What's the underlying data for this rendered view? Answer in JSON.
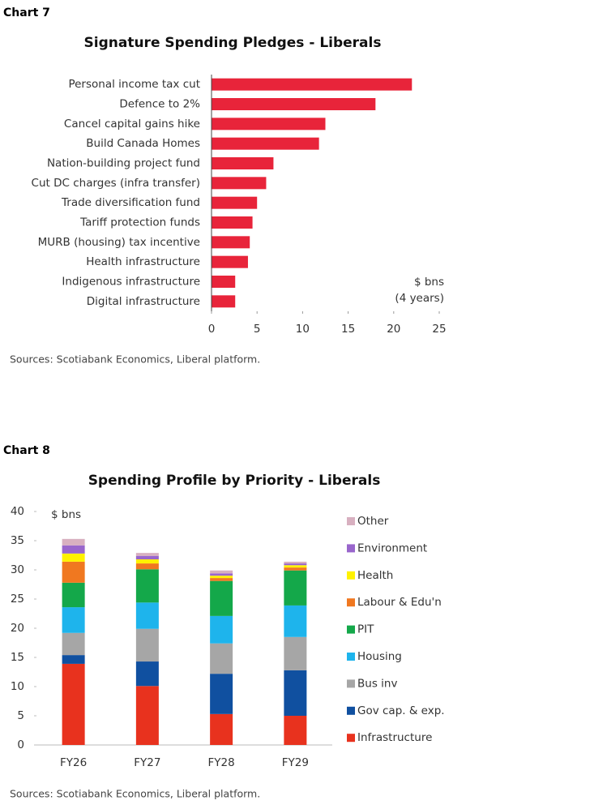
{
  "chart_data": [
    {
      "type": "bar",
      "orientation": "horizontal",
      "label": "Chart 7",
      "title": "Signature Spending Pledges - Liberals",
      "categories": [
        "Personal income tax cut",
        "Defence to 2%",
        "Cancel capital gains hike",
        "Build Canada Homes",
        "Nation-building project fund",
        "Cut DC charges (infra transfer)",
        "Trade diversification fund",
        "Tariff protection funds",
        "MURB (housing) tax incentive",
        "Health infrastructure",
        "Indigenous infrastructure",
        "Digital infrastructure"
      ],
      "values": [
        22,
        18,
        12.5,
        11.8,
        6.8,
        6,
        5,
        4.5,
        4.2,
        4,
        2.6,
        2.6
      ],
      "color": "#e8243a",
      "xlim": [
        0,
        25
      ],
      "xticks": [
        0,
        5,
        10,
        15,
        20,
        25
      ],
      "annotation": [
        "$ bns",
        "(4 years)"
      ],
      "source": "Sources: Scotiabank Economics, Liberal platform."
    },
    {
      "type": "stacked_bar",
      "label": "Chart 8",
      "title": "Spending Profile by Priority - Liberals",
      "categories": [
        "FY26",
        "FY27",
        "FY28",
        "FY29"
      ],
      "series": [
        {
          "name": "Infrastructure",
          "color": "#e8321e",
          "values": [
            13.9,
            10.1,
            5.3,
            5.0
          ]
        },
        {
          "name": "Gov cap. & exp.",
          "color": "#1050a0",
          "values": [
            1.5,
            4.2,
            6.9,
            7.8
          ]
        },
        {
          "name": "Bus inv",
          "color": "#a6a6a6",
          "values": [
            3.8,
            5.6,
            5.2,
            5.7
          ]
        },
        {
          "name": "Housing",
          "color": "#1eb4ec",
          "values": [
            4.4,
            4.5,
            4.7,
            5.4
          ]
        },
        {
          "name": "PIT",
          "color": "#14a84a",
          "values": [
            4.2,
            5.7,
            6.0,
            6.0
          ]
        },
        {
          "name": "Labour & Edu'n",
          "color": "#f07820",
          "values": [
            3.6,
            1.0,
            0.5,
            0.5
          ]
        },
        {
          "name": "Health",
          "color": "#fff200",
          "values": [
            1.4,
            0.7,
            0.4,
            0.4
          ]
        },
        {
          "name": "Environment",
          "color": "#9966cc",
          "values": [
            1.4,
            0.6,
            0.4,
            0.3
          ]
        },
        {
          "name": "Other",
          "color": "#d8b0c0",
          "values": [
            1.1,
            0.5,
            0.5,
            0.3
          ]
        }
      ],
      "ylim": [
        0,
        40
      ],
      "yticks": [
        0,
        5,
        10,
        15,
        20,
        25,
        30,
        35,
        40
      ],
      "annotation": "$ bns",
      "source": "Sources: Scotiabank Economics, Liberal platform."
    }
  ]
}
